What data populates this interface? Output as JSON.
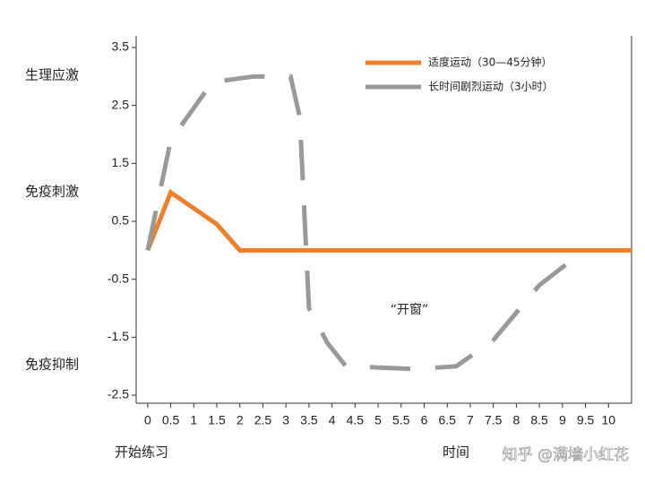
{
  "chart_data": {
    "type": "line",
    "xlim": [
      -0.25,
      10.5
    ],
    "ylim": [
      -2.5,
      3.5
    ],
    "xticks": [
      0,
      0.5,
      1,
      1.5,
      2,
      2.5,
      3,
      3.5,
      4,
      4.5,
      5,
      5.5,
      6,
      6.5,
      7,
      7.5,
      8,
      8.5,
      9,
      9.5,
      10
    ],
    "yticks": [
      -2.5,
      -1.5,
      -0.5,
      0.5,
      1.5,
      2.5,
      3.5
    ],
    "x_label_start": "开始练习",
    "x_label": "时间",
    "side_labels": [
      "生理应激",
      "免疫刺激",
      "免疫抑制"
    ],
    "annotation": "“开窗”",
    "watermark": "知乎 @满墙小红花",
    "series": [
      {
        "name": "适度运动（30—45分钟）",
        "color": "#f07f2a",
        "dashed": false,
        "x": [
          0,
          0.5,
          1.5,
          2,
          10.5
        ],
        "values": [
          0,
          1.0,
          0.45,
          0,
          0
        ]
      },
      {
        "name": "长时间剧烈运动（3小时）",
        "color": "#999999",
        "dashed": true,
        "x": [
          0,
          0.5,
          1.4,
          2.3,
          3.1,
          3.3,
          3.5,
          3.9,
          4.3,
          5.8,
          6.7,
          7.5,
          8.5,
          9.4
        ],
        "values": [
          0,
          1.9,
          2.9,
          3.0,
          3.0,
          2.3,
          -1.0,
          -1.6,
          -2.0,
          -2.05,
          -2.0,
          -1.55,
          -0.6,
          -0.05
        ]
      }
    ]
  }
}
